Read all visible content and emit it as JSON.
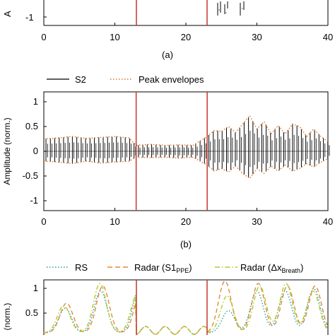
{
  "figure": {
    "panel_a_caption": "(a)",
    "panel_b_caption": "(b)",
    "panel_a_ylabel_fragment": "A",
    "panel_c_ylabel_fragment": "(norm.)"
  },
  "colors": {
    "signal": "#000000",
    "envelope": "#d9742b",
    "marker": "#c0392b",
    "rs": "#2a9d9d",
    "radar_s1": "#e08a3c",
    "radar_breath": "#b5c92a"
  },
  "chart_data": [
    {
      "id": "panel-a",
      "type": "line",
      "partial": true,
      "xlim": [
        0,
        40
      ],
      "x_ticks": [
        "0",
        "10",
        "20",
        "30",
        "40"
      ],
      "y_ticks_visible": [
        "-1"
      ],
      "markers_x": [
        13,
        23
      ]
    },
    {
      "id": "panel-b",
      "type": "line",
      "ylabel": "Amplitude (norm.)",
      "xlim": [
        0,
        40
      ],
      "ylim": [
        -1.2,
        1.2
      ],
      "x_ticks": [
        "0",
        "10",
        "20",
        "30",
        "40"
      ],
      "y_ticks": [
        "1",
        "0.5",
        "0",
        "-0.5",
        "-1"
      ],
      "y_tick_values": [
        1,
        0.5,
        0,
        -0.5,
        -1
      ],
      "grid": false,
      "legend": "top",
      "markers_x": [
        13,
        23
      ],
      "series": [
        {
          "name": "S2",
          "style": "solid"
        },
        {
          "name": "Peak envelopes",
          "style": "dotted"
        }
      ],
      "envelope": {
        "x": [
          0,
          2,
          4,
          6,
          8,
          10,
          12,
          13,
          15,
          17,
          19,
          21,
          23,
          24,
          25,
          26,
          27,
          28,
          29,
          30,
          31,
          32,
          33,
          34,
          35,
          36,
          37,
          38,
          39,
          40
        ],
        "upper": [
          0.25,
          0.27,
          0.3,
          0.26,
          0.28,
          0.3,
          0.27,
          0.12,
          0.14,
          0.12,
          0.13,
          0.12,
          0.3,
          0.42,
          0.4,
          0.5,
          0.38,
          0.55,
          0.72,
          0.45,
          0.6,
          0.35,
          0.52,
          0.35,
          0.55,
          0.5,
          0.3,
          0.45,
          0.3,
          0.2
        ],
        "lower": [
          -0.2,
          -0.22,
          -0.25,
          -0.2,
          -0.24,
          -0.22,
          -0.2,
          -0.12,
          -0.13,
          -0.12,
          -0.14,
          -0.12,
          -0.28,
          -0.4,
          -0.35,
          -0.42,
          -0.3,
          -0.45,
          -0.55,
          -0.35,
          -0.45,
          -0.3,
          -0.4,
          -0.28,
          -0.4,
          -0.35,
          -0.25,
          -0.32,
          -0.22,
          -0.15
        ]
      }
    },
    {
      "id": "panel-c",
      "type": "line",
      "partial": true,
      "xlim": [
        0,
        40
      ],
      "y_ticks_visible": [
        "1",
        "0.5"
      ],
      "y_tick_values": [
        1,
        0.5
      ],
      "legend": "top",
      "markers_x": [
        13,
        23
      ],
      "series": [
        {
          "name": "RS",
          "style": "dotted"
        },
        {
          "name": "Radar (S1",
          "sub": "PPE",
          "suffix": ")",
          "style": "dashed"
        },
        {
          "name": "Radar (Δx",
          "sub": "Breath",
          "suffix": ")",
          "style": "dashdot"
        }
      ]
    }
  ]
}
